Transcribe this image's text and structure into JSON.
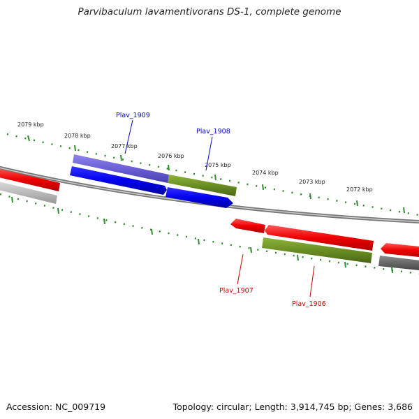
{
  "title": "Parvibaculum lavamentivorans DS-1, complete genome",
  "footer": {
    "accession": "Accession: NC_009719",
    "summary": "Topology: circular; Length: 3,914,745 bp; Genes: 3,686"
  },
  "kbp_labels": [
    "2079 kbp",
    "2078 kbp",
    "2077 kbp",
    "2076 kbp",
    "2075 kbp",
    "2074 kbp",
    "2073 kbp",
    "2072 kbp"
  ],
  "gene_labels": {
    "plav_1909": "Plav_1909",
    "plav_1908": "Plav_1908",
    "plav_1907": "Plav_1907",
    "plav_1906": "Plav_1906"
  },
  "colors": {
    "red": "#ee1111",
    "blue": "#0000ee",
    "light_blue": "#6a5fd6",
    "olive": "#6b8e23",
    "gray": "#666666",
    "light_gray": "#bbbbbb",
    "tick_green": "#2e8b2e",
    "label_blue": "#0000cc",
    "label_red": "#cc0000"
  }
}
